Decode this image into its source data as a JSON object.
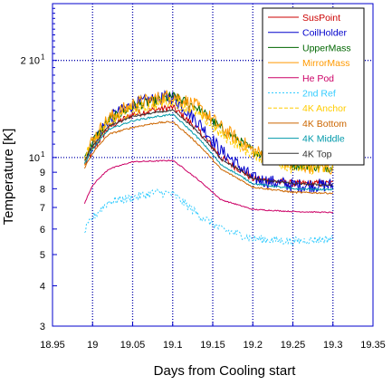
{
  "chart_data": {
    "type": "line",
    "title": "",
    "xlabel": "Days from Cooling start",
    "ylabel": "Temperature [K]",
    "xlim": [
      18.95,
      19.35
    ],
    "ylim": [
      3,
      30
    ],
    "y_scale": "log",
    "grid": "dotted major grid",
    "legend_position": "top-right",
    "x_ticks": [
      {
        "v": 18.95,
        "label": "18.95"
      },
      {
        "v": 19.0,
        "label": "19"
      },
      {
        "v": 19.05,
        "label": "19.05"
      },
      {
        "v": 19.1,
        "label": "19.1"
      },
      {
        "v": 19.15,
        "label": "19.15"
      },
      {
        "v": 19.2,
        "label": "19.2"
      },
      {
        "v": 19.25,
        "label": "19.25"
      },
      {
        "v": 19.3,
        "label": "19.3"
      },
      {
        "v": 19.35,
        "label": "19.35"
      }
    ],
    "y_ticks": [
      {
        "v": 3,
        "label": "3"
      },
      {
        "v": 4,
        "label": "4"
      },
      {
        "v": 5,
        "label": "5"
      },
      {
        "v": 6,
        "label": "6"
      },
      {
        "v": 7,
        "label": "7"
      },
      {
        "v": 8,
        "label": "8"
      },
      {
        "v": 9,
        "label": "9"
      },
      {
        "v": 10,
        "label": "10",
        "sup": "1"
      },
      {
        "v": 20,
        "label": "2 10",
        "sup": "1"
      }
    ],
    "series": [
      {
        "name": "SusPoint",
        "color": "#cc0000",
        "dash": "",
        "noise": 0.025,
        "x": [
          18.99,
          19.0,
          19.02,
          19.05,
          19.08,
          19.1,
          19.13,
          19.16,
          19.2,
          19.25,
          19.3
        ],
        "y": [
          9.5,
          10.5,
          12.4,
          13.6,
          14.1,
          14.3,
          12.3,
          10.0,
          8.6,
          8.3,
          8.3
        ]
      },
      {
        "name": "CoilHolder",
        "color": "#0000cc",
        "dash": "",
        "noise": 0.05,
        "x": [
          18.99,
          19.0,
          19.02,
          19.05,
          19.08,
          19.1,
          19.13,
          19.16,
          19.2,
          19.25,
          19.3
        ],
        "y": [
          9.8,
          11.0,
          13.2,
          14.6,
          15.2,
          15.4,
          13.0,
          10.5,
          8.6,
          8.2,
          8.2
        ]
      },
      {
        "name": "UpperMass",
        "color": "#006600",
        "dash": "",
        "noise": 0.035,
        "x": [
          18.99,
          19.0,
          19.02,
          19.05,
          19.08,
          19.1,
          19.13,
          19.16,
          19.2,
          19.25,
          19.3
        ],
        "y": [
          10.0,
          11.2,
          13.0,
          14.4,
          15.0,
          15.5,
          14.3,
          12.3,
          10.5,
          9.5,
          9.3
        ]
      },
      {
        "name": "MirrorMass",
        "color": "#ff9900",
        "dash": "",
        "noise": 0.055,
        "x": [
          18.99,
          19.0,
          19.02,
          19.05,
          19.08,
          19.1,
          19.13,
          19.16,
          19.2,
          19.25,
          19.3
        ],
        "y": [
          10.0,
          11.3,
          13.2,
          14.6,
          15.2,
          15.6,
          14.4,
          12.4,
          10.5,
          9.5,
          9.3
        ]
      },
      {
        "name": "He Pod",
        "color": "#cc0066",
        "dash": "",
        "noise": 0.004,
        "x": [
          18.99,
          19.0,
          19.02,
          19.05,
          19.08,
          19.1,
          19.13,
          19.16,
          19.2,
          19.25,
          19.3
        ],
        "y": [
          7.2,
          8.2,
          9.2,
          9.7,
          9.75,
          9.8,
          8.6,
          7.4,
          6.9,
          6.8,
          6.75
        ]
      },
      {
        "name": "2nd Ref",
        "color": "#33ccff",
        "dash": "2 2",
        "noise": 0.03,
        "x": [
          18.99,
          19.0,
          19.02,
          19.05,
          19.08,
          19.1,
          19.13,
          19.16,
          19.2,
          19.25,
          19.3
        ],
        "y": [
          5.9,
          6.5,
          7.3,
          7.5,
          7.8,
          7.7,
          6.7,
          6.0,
          5.6,
          5.5,
          5.6
        ]
      },
      {
        "name": "4K Anchor",
        "color": "#ffcc00",
        "dash": "4 2",
        "noise": 0.04,
        "x": [
          18.99,
          19.0,
          19.02,
          19.05,
          19.08,
          19.1,
          19.13,
          19.16,
          19.2,
          19.25,
          19.3
        ],
        "y": [
          10.0,
          11.0,
          12.8,
          14.0,
          14.6,
          15.0,
          13.7,
          11.8,
          10.2,
          9.3,
          9.2
        ]
      },
      {
        "name": "4K Bottom",
        "color": "#cc6600",
        "dash": "",
        "noise": 0.006,
        "x": [
          18.99,
          19.0,
          19.02,
          19.05,
          19.08,
          19.1,
          19.13,
          19.16,
          19.2,
          19.25,
          19.3
        ],
        "y": [
          9.3,
          10.3,
          11.8,
          12.4,
          12.8,
          12.9,
          11.1,
          9.2,
          8.1,
          7.8,
          7.75
        ]
      },
      {
        "name": "4K Middle",
        "color": "#0099aa",
        "dash": "",
        "noise": 0.006,
        "x": [
          18.99,
          19.0,
          19.02,
          19.05,
          19.08,
          19.1,
          19.13,
          19.16,
          19.2,
          19.25,
          19.3
        ],
        "y": [
          9.6,
          10.6,
          12.2,
          13.0,
          13.4,
          13.6,
          11.6,
          9.5,
          8.3,
          8.0,
          7.95
        ]
      },
      {
        "name": "4K Top",
        "color": "#333333",
        "dash": "",
        "noise": 0.006,
        "x": [
          18.99,
          19.0,
          19.02,
          19.05,
          19.08,
          19.1,
          19.13,
          19.16,
          19.2,
          19.25,
          19.3
        ],
        "y": [
          9.8,
          10.8,
          12.5,
          13.4,
          13.8,
          14.0,
          12.1,
          9.9,
          8.6,
          8.3,
          8.2
        ]
      }
    ]
  }
}
